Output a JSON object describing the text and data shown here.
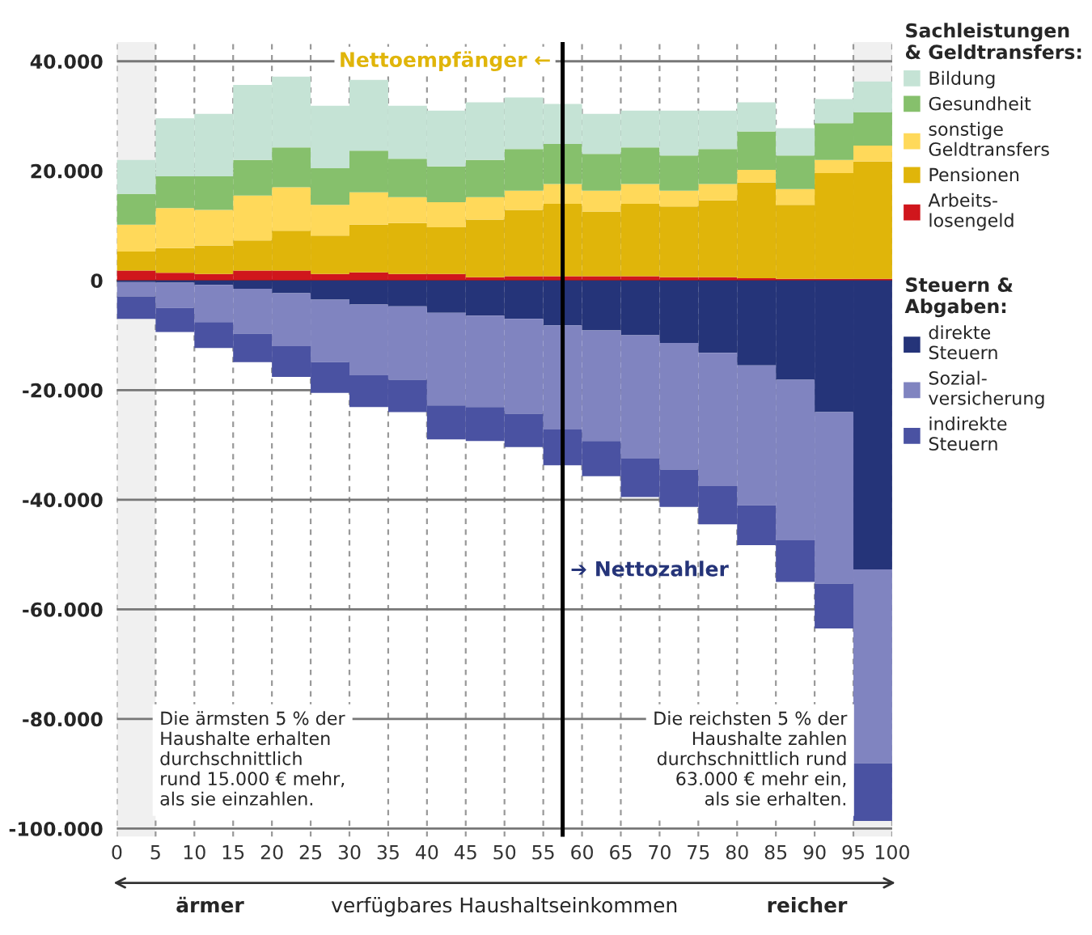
{
  "chart_data": {
    "type": "bar",
    "stacked": true,
    "xlabel": "verfügbares Haushaltseinkommen",
    "legend_title": "Sachleistungen\n& Geldtransfers:",
    "x": [
      2.5,
      7.5,
      12.5,
      17.5,
      22.5,
      27.5,
      32.5,
      37.5,
      42.5,
      47.5,
      52.5,
      57.5,
      62.5,
      67.5,
      72.5,
      77.5,
      82.5,
      87.5,
      92.5,
      97.5
    ],
    "series": [
      {
        "name": "Arbeits-\nlosengeld",
        "color": "#d0161c",
        "values": [
          1800,
          1400,
          1200,
          1800,
          1800,
          1200,
          1500,
          1200,
          1200,
          600,
          800,
          800,
          800,
          800,
          600,
          600,
          400,
          300,
          300,
          300
        ]
      },
      {
        "name": "Pensionen",
        "color": "#e0b50a",
        "values": [
          3500,
          4500,
          5200,
          5500,
          7300,
          7000,
          8700,
          9300,
          8500,
          10500,
          12100,
          13200,
          11800,
          13200,
          12900,
          14000,
          17500,
          13500,
          19300,
          21400
        ]
      },
      {
        "name": "sonstige\nGeldtransfers",
        "color": "#ffd95a",
        "values": [
          4900,
          7300,
          6500,
          8200,
          7900,
          5600,
          5900,
          4700,
          4600,
          4100,
          3500,
          3600,
          3800,
          3600,
          2900,
          3000,
          2300,
          2900,
          2400,
          2900
        ]
      },
      {
        "name": "Gesundheit",
        "color": "#86c06c",
        "values": [
          5600,
          5800,
          6100,
          6500,
          7300,
          6700,
          7600,
          7000,
          6500,
          6800,
          7600,
          7300,
          6700,
          6700,
          6400,
          6400,
          7000,
          6100,
          6700,
          6100
        ]
      },
      {
        "name": "Bildung",
        "color": "#c5e3d5",
        "values": [
          6200,
          10600,
          11400,
          13700,
          12900,
          11400,
          12900,
          9700,
          10200,
          10500,
          9400,
          7300,
          7300,
          6700,
          8200,
          7000,
          5300,
          5000,
          4400,
          5600
        ]
      },
      {
        "name": "direkte\nSteuern",
        "color": "#253479",
        "values": [
          -300,
          -400,
          -800,
          -1500,
          -2300,
          -3500,
          -4400,
          -4700,
          -5900,
          -6400,
          -7000,
          -8200,
          -9100,
          -10000,
          -11400,
          -13200,
          -15500,
          -18100,
          -24000,
          -52700
        ]
      },
      {
        "name": "Sozial-\nversicherung",
        "color": "#8084c0",
        "values": [
          -2600,
          -4600,
          -6800,
          -8200,
          -9700,
          -11400,
          -12900,
          -13400,
          -16900,
          -16700,
          -17300,
          -19000,
          -20200,
          -22500,
          -23100,
          -24300,
          -25500,
          -29300,
          -31300,
          -35400
        ]
      },
      {
        "name": "indirekte\nSteuern",
        "color": "#4a52a2",
        "values": [
          -4100,
          -4400,
          -4700,
          -5200,
          -5600,
          -5600,
          -5800,
          -5900,
          -6200,
          -6200,
          -6100,
          -6500,
          -6400,
          -7000,
          -6800,
          -7000,
          -7300,
          -7600,
          -8200,
          -10500
        ]
      }
    ],
    "xlim": [
      0,
      100
    ],
    "xticks": [
      0,
      5,
      10,
      15,
      20,
      25,
      30,
      35,
      40,
      45,
      50,
      55,
      60,
      65,
      70,
      75,
      80,
      85,
      90,
      95,
      100
    ],
    "ylim": [
      -101500,
      43500
    ],
    "yticks": [
      {
        "value": -100000,
        "label": "-100.000"
      },
      {
        "value": -80000,
        "label": "-80.000"
      },
      {
        "value": -60000,
        "label": "-60.000"
      },
      {
        "value": -40000,
        "label": "-40.000"
      },
      {
        "value": -20000,
        "label": "-20.000"
      },
      0,
      {
        "value": 20000,
        "label": "20.000"
      },
      {
        "value": 40000,
        "label": "40.000"
      }
    ],
    "grid": true,
    "legend": "right",
    "ref_lines": [
      {
        "axis": "x",
        "value": 57.5,
        "color": "#000000"
      }
    ],
    "bands": [
      {
        "axis": "x",
        "from": 0,
        "to": 5,
        "color": "#f0f0f0"
      },
      {
        "axis": "x",
        "from": 95,
        "to": 100,
        "color": "#f0f0f0"
      }
    ],
    "annotations": [
      "Nettoempfänger ←",
      "➔ Nettozahler",
      "Die ärmsten 5 % der\nHaushalte erhalten\ndurchschnittlich\nrund 15.000 € mehr,\nals sie einzahlen.",
      "Die reichsten 5 % der\nHaushalte zahlen\ndurchschnittlich rund\n63.000 € mehr ein,\nals sie erhalten.",
      "ärmer",
      "reicher",
      "Steuern &\nAbgaben:"
    ]
  }
}
